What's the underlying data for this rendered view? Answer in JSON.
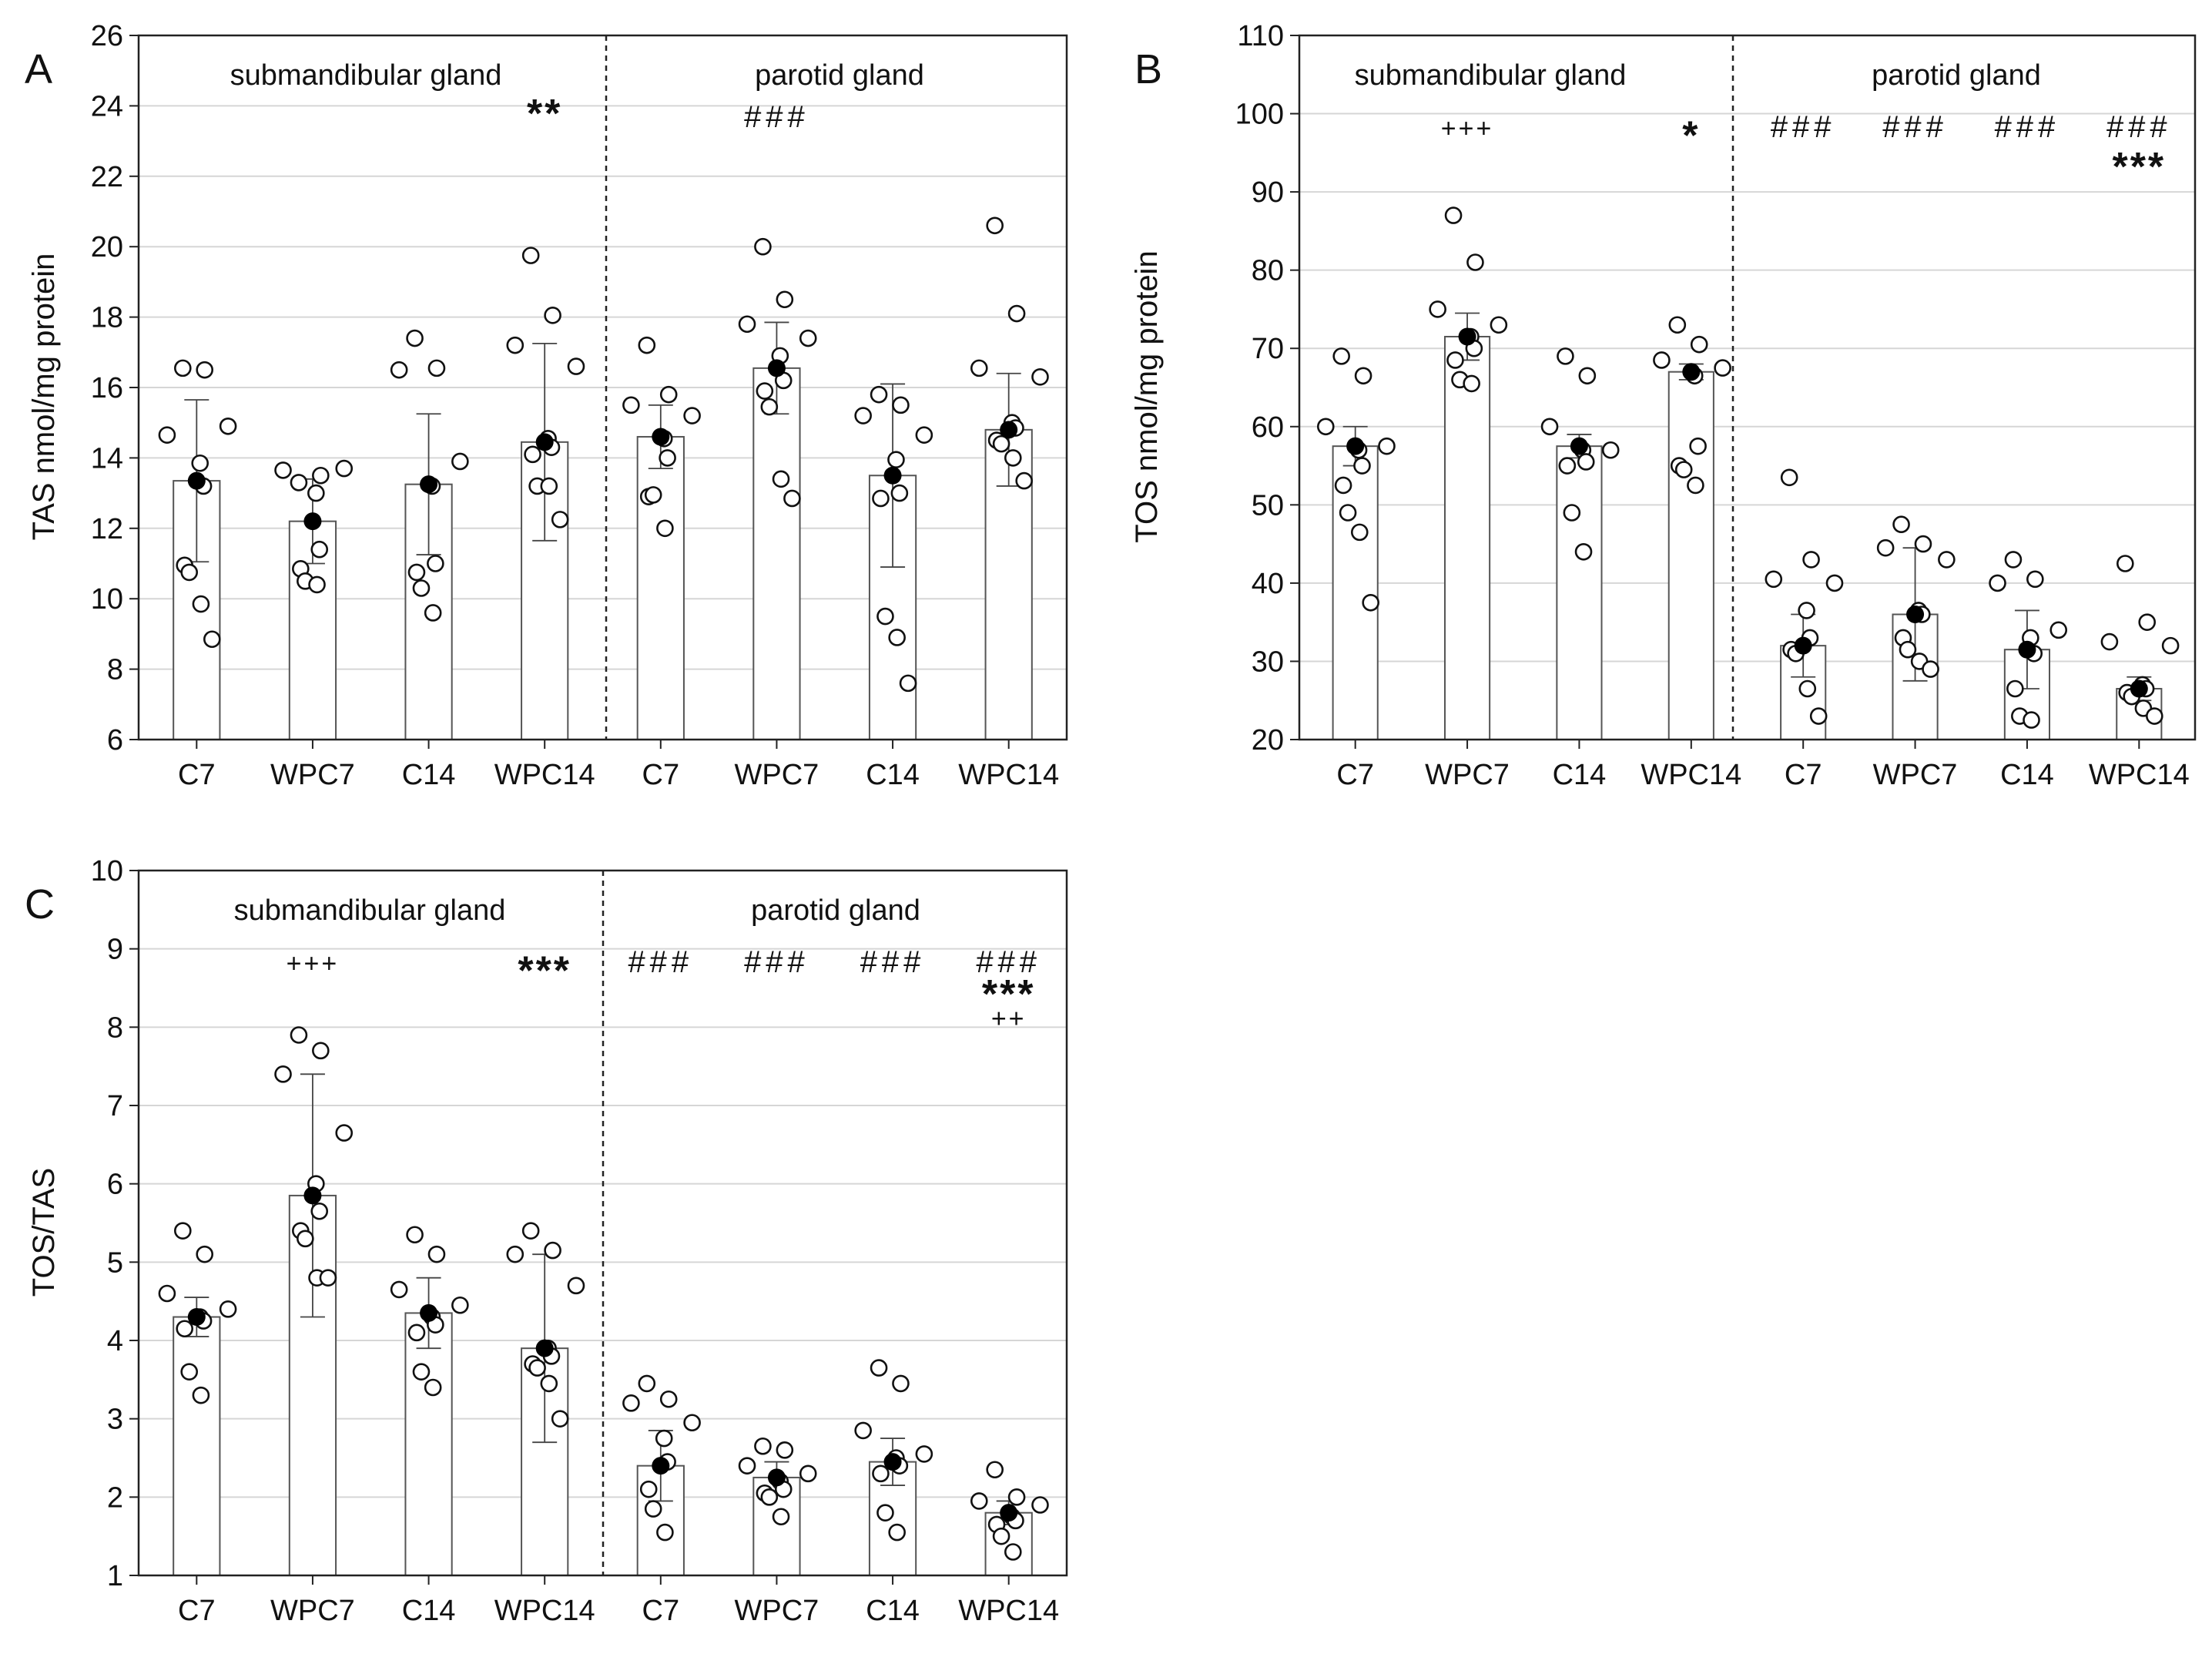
{
  "figure": {
    "categories": [
      "C7",
      "WPC7",
      "C14",
      "WPC14",
      "C7",
      "WPC7",
      "C14",
      "WPC14"
    ],
    "regions": [
      "submandibular gland",
      "parotid gland"
    ]
  },
  "chart_data": [
    {
      "panel": "A",
      "type": "bar",
      "ylabel": "TAS nmol/mg protein",
      "ylim": [
        6,
        26
      ],
      "yticks": [
        6,
        8,
        10,
        12,
        14,
        16,
        18,
        20,
        22,
        24,
        26
      ],
      "grid": true,
      "categories": [
        "C7",
        "WPC7",
        "C14",
        "WPC14",
        "C7",
        "WPC7",
        "C14",
        "WPC14"
      ],
      "means": [
        13.35,
        12.2,
        13.25,
        14.45,
        14.6,
        16.55,
        13.5,
        14.8
      ],
      "errors": [
        2.3,
        1.2,
        2.0,
        2.8,
        0.9,
        1.3,
        2.6,
        1.6
      ],
      "points": [
        [
          16.55,
          16.5,
          14.65,
          14.9,
          13.85,
          13.2,
          10.95,
          10.75,
          9.85,
          8.85
        ],
        [
          13.3,
          13.5,
          13.65,
          13.7,
          13.0,
          11.4,
          10.85,
          10.5,
          10.4
        ],
        [
          17.4,
          16.55,
          16.5,
          13.9,
          13.2,
          11.0,
          10.75,
          10.3,
          9.6
        ],
        [
          19.75,
          18.05,
          17.2,
          16.6,
          14.55,
          14.3,
          14.1,
          13.2,
          13.2,
          12.25
        ],
        [
          17.2,
          15.8,
          15.5,
          15.2,
          14.55,
          14.0,
          12.9,
          12.95,
          12.0
        ],
        [
          20.0,
          18.5,
          17.8,
          17.4,
          16.9,
          16.2,
          15.9,
          15.45,
          13.4,
          12.85
        ],
        [
          15.8,
          15.5,
          15.2,
          14.65,
          13.95,
          13.0,
          12.85,
          9.5,
          8.9,
          7.6
        ],
        [
          20.6,
          18.1,
          16.55,
          16.3,
          15.0,
          14.85,
          14.5,
          14.4,
          14.0,
          13.35
        ]
      ],
      "annotations": [
        {
          "group": 3,
          "text": "**",
          "value": 23.4,
          "style": "annot-bold"
        },
        {
          "group": 5,
          "text": "###",
          "value": 23.4,
          "style": "annot"
        }
      ]
    },
    {
      "panel": "B",
      "type": "bar",
      "ylabel": "TOS nmol/mg protein",
      "ylim": [
        20,
        110
      ],
      "yticks": [
        20,
        30,
        40,
        50,
        60,
        70,
        80,
        90,
        100,
        110
      ],
      "grid": true,
      "categories": [
        "C7",
        "WPC7",
        "C14",
        "WPC14",
        "C7",
        "WPC7",
        "C14",
        "WPC14"
      ],
      "means": [
        57.5,
        71.5,
        57.5,
        67.0,
        32.0,
        36.0,
        31.5,
        26.5
      ],
      "errors": [
        2.5,
        3.0,
        1.5,
        1.0,
        4.0,
        8.5,
        5.0,
        1.5
      ],
      "points": [
        [
          69.0,
          66.5,
          60.0,
          57.5,
          57.0,
          55.0,
          52.5,
          49.0,
          46.5,
          37.5
        ],
        [
          87.0,
          81.0,
          75.0,
          73.0,
          71.5,
          70.0,
          68.5,
          66.0,
          65.5
        ],
        [
          69.0,
          66.5,
          60.0,
          57.0,
          57.0,
          55.5,
          55.0,
          49.0,
          44.0
        ],
        [
          73.0,
          70.5,
          68.5,
          67.5,
          66.5,
          57.5,
          55.0,
          54.5,
          52.5
        ],
        [
          53.5,
          43.0,
          40.5,
          40.0,
          36.5,
          33.0,
          31.5,
          31.0,
          26.5,
          23.0
        ],
        [
          47.5,
          45.0,
          44.5,
          43.0,
          36.5,
          36.0,
          33.0,
          31.5,
          30.0,
          29.0
        ],
        [
          43.0,
          40.5,
          40.0,
          34.0,
          33.0,
          31.0,
          26.5,
          23.0,
          22.5
        ],
        [
          42.5,
          35.0,
          32.5,
          32.0,
          27.0,
          26.5,
          26.0,
          25.5,
          24.0,
          23.0
        ]
      ],
      "annotations": [
        {
          "group": 1,
          "text": "+++",
          "value": 97.0,
          "style": "annot-plus"
        },
        {
          "group": 3,
          "text": "*",
          "value": 95.5,
          "style": "annot-bold"
        },
        {
          "group": 4,
          "text": "###",
          "value": 97.0,
          "style": "annot"
        },
        {
          "group": 5,
          "text": "###",
          "value": 97.0,
          "style": "annot"
        },
        {
          "group": 6,
          "text": "###",
          "value": 97.0,
          "style": "annot"
        },
        {
          "group": 7,
          "text": "###",
          "value": 97.0,
          "style": "annot"
        },
        {
          "group": 7,
          "text": "***",
          "value": 91.5,
          "style": "annot-bold"
        }
      ]
    },
    {
      "panel": "C",
      "type": "bar",
      "ylabel": "TOS/TAS",
      "ylim": [
        1,
        10
      ],
      "yticks": [
        1,
        2,
        3,
        4,
        5,
        6,
        7,
        8,
        9,
        10
      ],
      "grid": true,
      "categories": [
        "C7",
        "WPC7",
        "C14",
        "WPC14",
        "C7",
        "WPC7",
        "C14",
        "WPC14"
      ],
      "means": [
        4.3,
        5.85,
        4.35,
        3.9,
        2.4,
        2.25,
        2.45,
        1.8
      ],
      "errors": [
        0.25,
        1.55,
        0.45,
        1.2,
        0.45,
        0.2,
        0.3,
        0.15
      ],
      "points": [
        [
          5.4,
          5.1,
          4.6,
          4.4,
          4.3,
          4.25,
          4.15,
          3.6,
          3.3
        ],
        [
          7.9,
          7.7,
          7.4,
          6.65,
          6.0,
          5.65,
          5.4,
          5.3,
          4.8,
          4.8
        ],
        [
          5.35,
          5.1,
          4.65,
          4.45,
          4.3,
          4.2,
          4.1,
          3.6,
          3.4
        ],
        [
          5.4,
          5.15,
          5.1,
          4.7,
          3.9,
          3.8,
          3.7,
          3.65,
          3.45,
          3.0
        ],
        [
          3.45,
          3.25,
          3.2,
          2.95,
          2.75,
          2.45,
          2.1,
          1.85,
          1.55
        ],
        [
          2.65,
          2.6,
          2.4,
          2.3,
          2.2,
          2.1,
          2.05,
          2.0,
          1.75
        ],
        [
          3.65,
          3.45,
          2.85,
          2.55,
          2.5,
          2.4,
          2.3,
          1.8,
          1.55
        ],
        [
          2.35,
          2.0,
          1.95,
          1.9,
          1.75,
          1.7,
          1.65,
          1.5,
          1.3
        ]
      ],
      "annotations": [
        {
          "group": 1,
          "text": "+++",
          "value": 8.7,
          "style": "annot-plus"
        },
        {
          "group": 3,
          "text": "***",
          "value": 8.55,
          "style": "annot-bold"
        },
        {
          "group": 4,
          "text": "###",
          "value": 8.7,
          "style": "annot"
        },
        {
          "group": 5,
          "text": "###",
          "value": 8.7,
          "style": "annot"
        },
        {
          "group": 6,
          "text": "###",
          "value": 8.7,
          "style": "annot"
        },
        {
          "group": 7,
          "text": "###",
          "value": 8.7,
          "style": "annot"
        },
        {
          "group": 7,
          "text": "***",
          "value": 8.25,
          "style": "annot-bold"
        },
        {
          "group": 7,
          "text": "++",
          "value": 8.0,
          "style": "annot-plus"
        }
      ]
    }
  ]
}
